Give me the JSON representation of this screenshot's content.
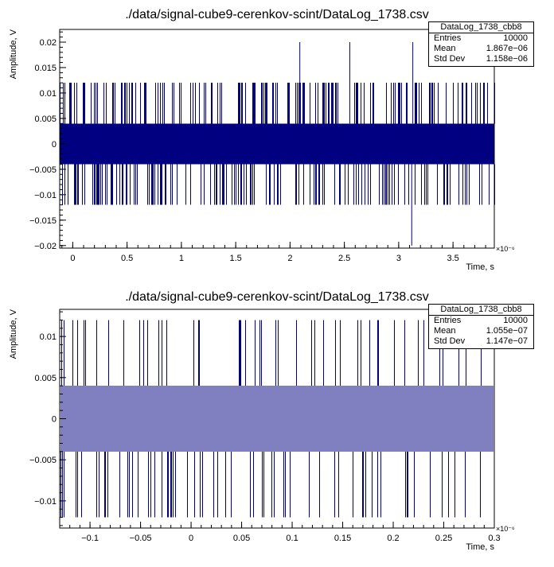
{
  "chart_data": [
    {
      "type": "line",
      "title": "./data/signal-cube9-cerenkov-scint/DataLog_1738.csv",
      "xlabel": "Time, s",
      "ylabel": "Amplitude, V",
      "x_exponent": "×10⁻⁶",
      "xlim": [
        -0.12,
        3.88
      ],
      "ylim": [
        -0.0205,
        0.0225
      ],
      "xticks": [
        0,
        0.5,
        1,
        1.5,
        2,
        2.5,
        3,
        3.5
      ],
      "xtick_labels": [
        "0",
        "0.5",
        "1",
        "1.5",
        "2",
        "2.5",
        "3",
        "3.5"
      ],
      "yticks": [
        -0.02,
        -0.015,
        -0.01,
        -0.005,
        0,
        0.005,
        0.01,
        0.015,
        0.02
      ],
      "ytick_labels": [
        "−0.02",
        "−0.015",
        "−0.01",
        "−0.005",
        "0",
        "0.005",
        "0.01",
        "0.015",
        "0.02"
      ],
      "series": [
        {
          "color": "#000080",
          "baseline_levels": [
            -0.004,
            0.004
          ],
          "frequent_levels": [
            -0.012,
            0.012
          ],
          "spikes": [
            {
              "x": 2.09,
              "y": 0.02
            },
            {
              "x": 2.55,
              "y": 0.02
            },
            {
              "x": 3.13,
              "y": 0.02
            },
            {
              "x": 3.12,
              "y": -0.02
            }
          ],
          "num_points": 10000
        }
      ],
      "stats": {
        "name": "DataLog_1738_cbb8",
        "rows": [
          {
            "label": "Entries",
            "value": "10000"
          },
          {
            "label": "Mean",
            "value": "1.867e−06"
          },
          {
            "label": "Std Dev",
            "value": "1.158e−06"
          }
        ]
      }
    },
    {
      "type": "line",
      "title": "./data/signal-cube9-cerenkov-scint/DataLog_1738.csv",
      "xlabel": "Time, s",
      "ylabel": "Amplitude, V",
      "x_exponent": "×10⁻⁶",
      "xlim": [
        -0.13,
        0.3
      ],
      "ylim": [
        -0.0133,
        0.0133
      ],
      "xticks": [
        -0.1,
        -0.05,
        0,
        0.05,
        0.1,
        0.15,
        0.2,
        0.25,
        0.3
      ],
      "xtick_labels": [
        "−0.1",
        "−0.05",
        "0",
        "0.05",
        "0.1",
        "0.15",
        "0.2",
        "0.25",
        "0.3"
      ],
      "yticks": [
        -0.01,
        -0.005,
        0,
        0.005,
        0.01
      ],
      "ytick_labels": [
        "−0.01",
        "−0.005",
        "0",
        "0.005",
        "0.01"
      ],
      "series": [
        {
          "color": "#000080",
          "baseline_levels": [
            -0.004,
            0.004
          ],
          "frequent_levels": [
            -0.012,
            0.012
          ],
          "spikes": [],
          "num_points": 10000
        }
      ],
      "stats": {
        "name": "DataLog_1738_cbb8",
        "rows": [
          {
            "label": "Entries",
            "value": "10000"
          },
          {
            "label": "Mean",
            "value": "1.055e−07"
          },
          {
            "label": "Std Dev",
            "value": "1.147e−07"
          }
        ]
      }
    }
  ]
}
